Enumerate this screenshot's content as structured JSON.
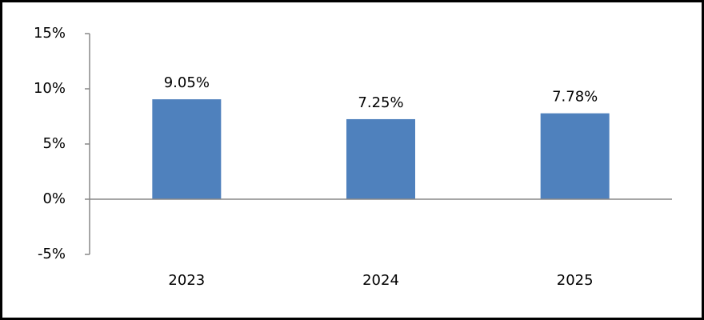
{
  "chart_data": {
    "type": "bar",
    "categories": [
      "2023",
      "2024",
      "2025"
    ],
    "values": [
      9.05,
      7.25,
      7.78
    ],
    "value_labels": [
      "9.05%",
      "7.25%",
      "7.78%"
    ],
    "color": "#4f81bd",
    "ylim": [
      -5,
      15
    ],
    "yticks": [
      {
        "value": -5,
        "label": "-5%"
      },
      {
        "value": 0,
        "label": "0%"
      },
      {
        "value": 5,
        "label": "5%"
      },
      {
        "value": 10,
        "label": "10%"
      },
      {
        "value": 15,
        "label": "15%"
      }
    ]
  }
}
